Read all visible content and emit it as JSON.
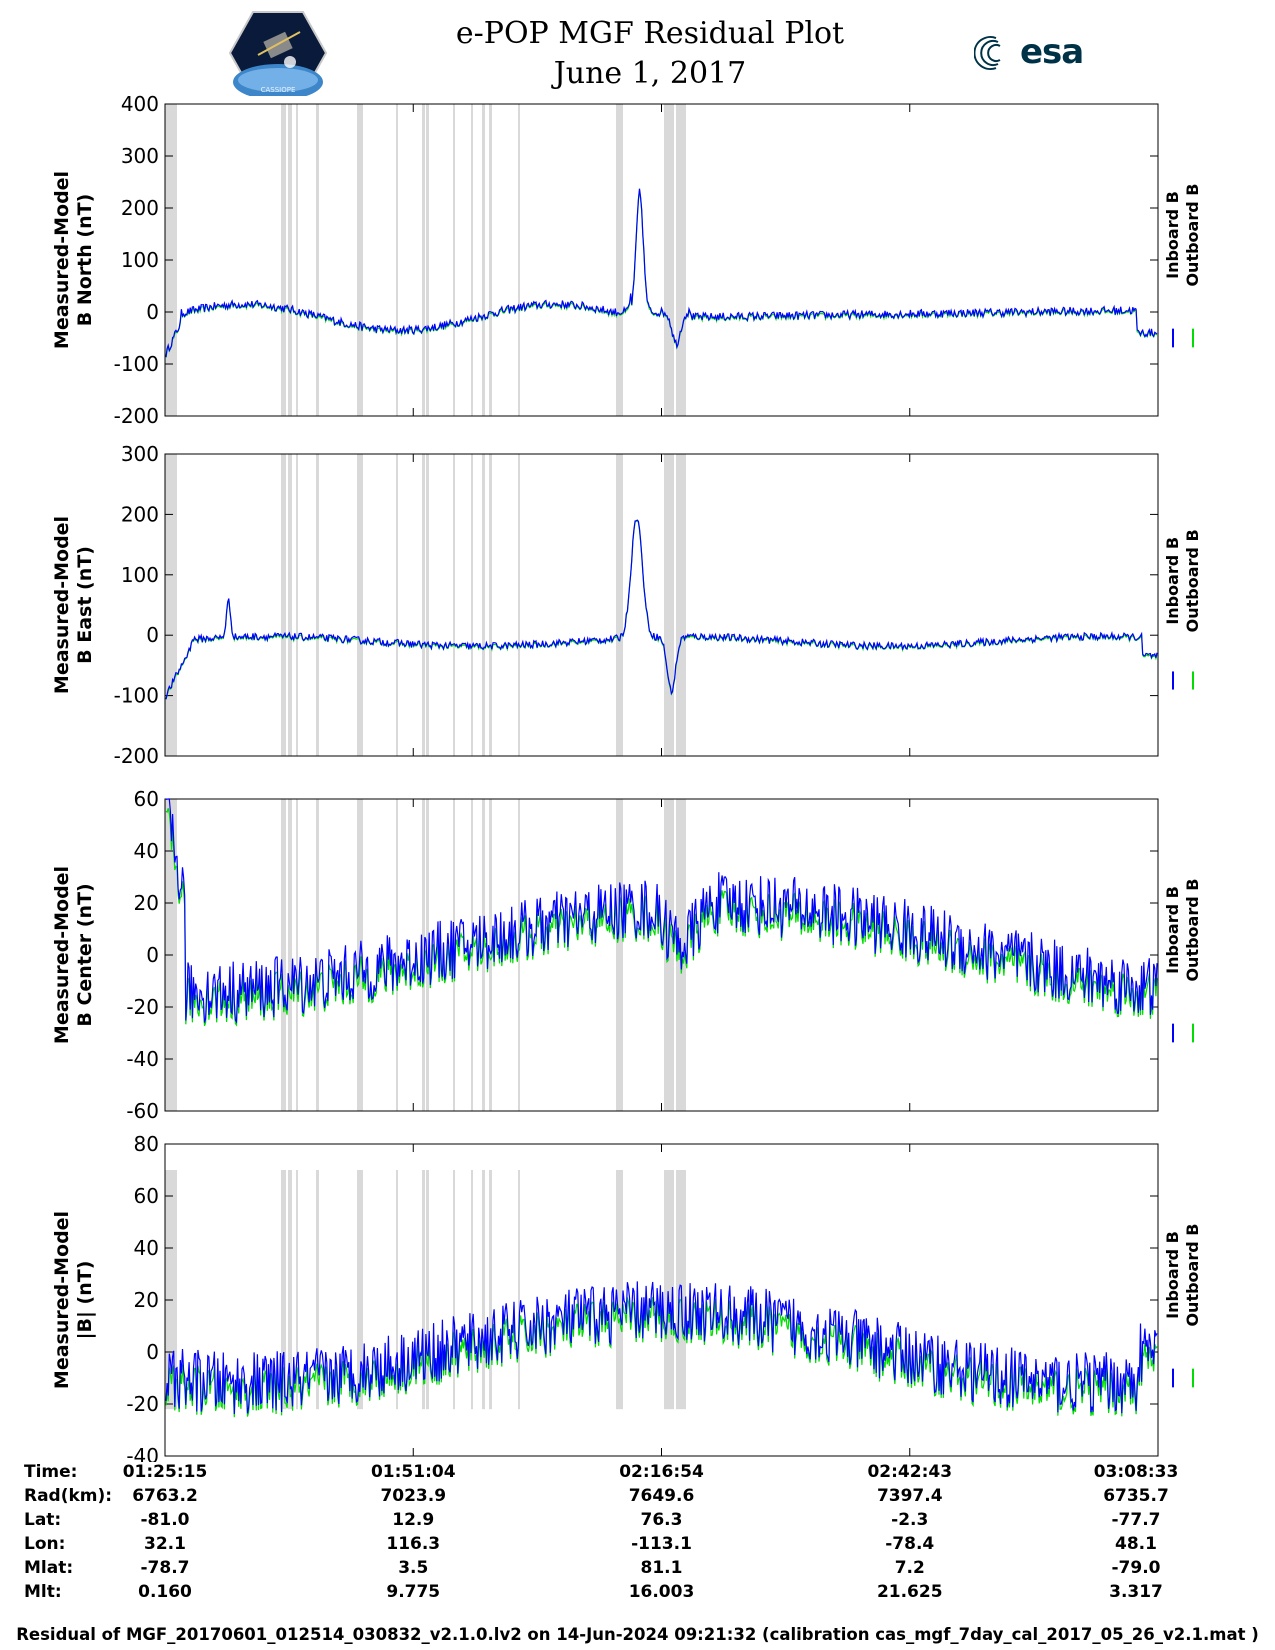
{
  "title_line1": "e-POP MGF Residual Plot",
  "title_line2": "June 1, 2017",
  "logo_left_text": "CASSIOPE",
  "logo_right_text": "esa",
  "colors": {
    "inboard": "#0000ff",
    "outboard": "#00dd00",
    "gap": "#d9d9d9"
  },
  "chart_data": [
    {
      "type": "line",
      "ylabel": [
        "Measured-Model",
        "B North (nT)"
      ],
      "ylim": [
        -200,
        400
      ],
      "yticks": [
        -200,
        -100,
        0,
        100,
        200,
        300,
        400
      ],
      "legend": [
        "Inboard B",
        "Outboard B"
      ]
    },
    {
      "type": "line",
      "ylabel": [
        "Measured-Model",
        "B East (nT)"
      ],
      "ylim": [
        -200,
        300
      ],
      "yticks": [
        -200,
        -100,
        0,
        100,
        200,
        300
      ],
      "legend": [
        "Inboard B",
        "Outboard B"
      ]
    },
    {
      "type": "line",
      "ylabel": [
        "Measured-Model",
        "B Center (nT)"
      ],
      "ylim": [
        -60,
        60
      ],
      "yticks": [
        -60,
        -40,
        -20,
        0,
        20,
        40,
        60
      ],
      "legend": [
        "Inboard B",
        "Outboard B"
      ]
    },
    {
      "type": "line",
      "ylabel": [
        "Measured-Model",
        "|B| (nT)"
      ],
      "ylim": [
        -40,
        80
      ],
      "yticks": [
        -40,
        -20,
        0,
        20,
        40,
        60,
        80
      ],
      "legend": [
        "Inboard B",
        "Outboard B"
      ]
    }
  ],
  "info_table": {
    "labels": [
      "Time:",
      "Rad(km):",
      "Lat:",
      "Lon:",
      "Mlat:",
      "Mlt:"
    ],
    "columns": [
      [
        "01:25:15",
        "6763.2",
        "-81.0",
        "32.1",
        "-78.7",
        "0.160"
      ],
      [
        "01:51:04",
        "7023.9",
        "12.9",
        "116.3",
        "3.5",
        "9.775"
      ],
      [
        "02:16:54",
        "7649.6",
        "76.3",
        "-113.1",
        "81.1",
        "16.003"
      ],
      [
        "02:42:43",
        "7397.4",
        "-2.3",
        "-78.4",
        "7.2",
        "21.625"
      ],
      [
        "03:08:33",
        "6735.7",
        "-77.7",
        "48.1",
        "-79.0",
        "3.317"
      ]
    ]
  },
  "footer": "Residual of MGF_20170601_012514_030832_v2.1.0.lv2 on 14-Jun-2024 09:21:32 (calibration cas_mgf_7day_cal_2017_05_26_v2.1.mat )"
}
